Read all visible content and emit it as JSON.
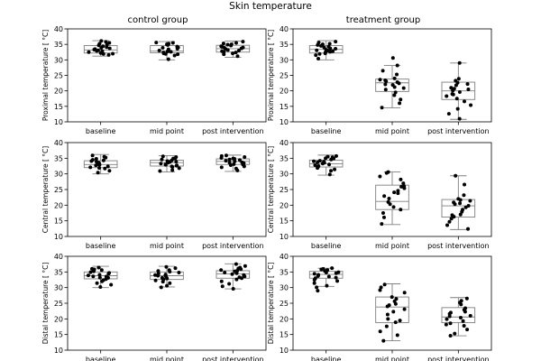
{
  "figure_title": "Skin temperature",
  "column_titles": [
    "control group",
    "treatment group"
  ],
  "chart_data": [
    {
      "type": "box",
      "group": "control group",
      "ylabel": "Proximal temperature [ °C]",
      "ylim": [
        10,
        40
      ],
      "yticks": [
        10,
        15,
        20,
        25,
        30,
        35,
        40
      ],
      "categories": [
        "baseline",
        "mid point",
        "post intervention"
      ],
      "boxes": [
        {
          "whislo": 31.2,
          "q1": 32.2,
          "med": 33.2,
          "q3": 34.6,
          "whishi": 36.2
        },
        {
          "whislo": 30.0,
          "q1": 32.3,
          "med": 32.8,
          "q3": 34.6,
          "whishi": 35.9
        },
        {
          "whislo": 30.8,
          "q1": 32.5,
          "med": 33.6,
          "q3": 34.7,
          "whishi": 36.1
        }
      ],
      "points": [
        [
          34.1,
          32.8,
          35.2,
          33.5,
          31.6,
          34.9,
          32.2,
          36.1,
          33.9,
          32.5,
          34.4,
          31.9,
          33.1,
          35.5,
          32.9,
          34.7,
          33.3,
          32.0,
          35.8,
          33.7
        ],
        [
          35.6,
          32.4,
          33.9,
          31.8,
          34.8,
          32.9,
          30.2,
          35.2,
          33.4,
          32.1,
          34.3,
          31.4,
          33.0,
          35.5,
          32.6,
          34.0,
          31.9,
          33.6,
          35.0,
          32.7
        ],
        [
          34.6,
          33.2,
          35.9,
          32.4,
          34.0,
          31.2,
          35.3,
          33.7,
          32.8,
          34.9,
          33.0,
          35.5,
          31.8,
          34.2,
          33.5,
          32.1,
          35.0,
          33.9,
          34.4,
          32.6
        ]
      ]
    },
    {
      "type": "box",
      "group": "treatment group",
      "ylabel": "Proximal temperature [ °C]",
      "ylim": [
        10,
        40
      ],
      "yticks": [
        10,
        15,
        20,
        25,
        30,
        35,
        40
      ],
      "categories": [
        "baseline",
        "mid point",
        "post intervention"
      ],
      "boxes": [
        {
          "whislo": 30.0,
          "q1": 32.2,
          "med": 33.4,
          "q3": 34.6,
          "whishi": 36.2
        },
        {
          "whislo": 14.5,
          "q1": 19.8,
          "med": 22.6,
          "q3": 23.8,
          "whishi": 28.2
        },
        {
          "whislo": 10.8,
          "q1": 17.2,
          "med": 20.0,
          "q3": 22.8,
          "whishi": 29.0
        }
      ],
      "points": [
        [
          34.5,
          33.1,
          35.6,
          32.4,
          34.0,
          31.5,
          35.2,
          33.7,
          32.8,
          34.8,
          30.4,
          35.9,
          33.3,
          32.1,
          34.3,
          33.0,
          31.9,
          35.0,
          33.6,
          32.6
        ],
        [
          30.6,
          28.2,
          26.5,
          25.3,
          24.0,
          23.6,
          23.1,
          22.8,
          22.4,
          21.9,
          21.2,
          20.4,
          19.5,
          18.6,
          17.2,
          16.0,
          14.6,
          23.4,
          22.1,
          20.9
        ],
        [
          29.0,
          23.9,
          23.3,
          22.6,
          21.8,
          21.0,
          20.5,
          20.1,
          19.6,
          19.0,
          18.3,
          17.5,
          16.6,
          15.4,
          14.2,
          12.6,
          11.0,
          22.2,
          20.7,
          18.8
        ]
      ]
    },
    {
      "type": "box",
      "group": "control group",
      "ylabel": "Central temperature [ °C]",
      "ylim": [
        10,
        40
      ],
      "yticks": [
        10,
        15,
        20,
        25,
        30,
        35,
        40
      ],
      "categories": [
        "baseline",
        "mid point",
        "post intervention"
      ],
      "boxes": [
        {
          "whislo": 30.0,
          "q1": 32.0,
          "med": 33.0,
          "q3": 34.2,
          "whishi": 36.2
        },
        {
          "whislo": 30.6,
          "q1": 32.5,
          "med": 33.6,
          "q3": 34.4,
          "whishi": 35.8
        },
        {
          "whislo": 30.8,
          "q1": 33.0,
          "med": 34.0,
          "q3": 34.8,
          "whishi": 36.0
        }
      ],
      "points": [
        [
          35.9,
          33.4,
          32.1,
          34.5,
          31.0,
          33.9,
          32.7,
          35.2,
          30.4,
          33.1,
          34.1,
          32.4,
          33.6,
          31.7,
          34.8,
          32.9,
          33.3,
          35.5,
          31.9,
          34.3
        ],
        [
          35.4,
          33.8,
          32.6,
          34.6,
          31.2,
          33.3,
          35.0,
          32.2,
          34.1,
          30.9,
          33.6,
          32.9,
          34.9,
          31.8,
          33.0,
          34.3,
          32.4,
          35.6,
          33.9,
          32.7
        ],
        [
          35.7,
          34.2,
          33.1,
          35.1,
          32.4,
          34.6,
          31.1,
          33.7,
          34.9,
          32.8,
          35.4,
          33.4,
          34.0,
          32.1,
          35.9,
          33.0,
          34.4,
          31.7,
          34.8,
          33.6
        ]
      ]
    },
    {
      "type": "box",
      "group": "treatment group",
      "ylabel": "Central temperature [ °C]",
      "ylim": [
        10,
        40
      ],
      "yticks": [
        10,
        15,
        20,
        25,
        30,
        35,
        40
      ],
      "categories": [
        "baseline",
        "mid point",
        "post intervention"
      ],
      "boxes": [
        {
          "whislo": 29.6,
          "q1": 32.2,
          "med": 33.2,
          "q3": 34.4,
          "whishi": 36.0
        },
        {
          "whislo": 13.8,
          "q1": 18.6,
          "med": 21.2,
          "q3": 26.4,
          "whishi": 30.6
        },
        {
          "whislo": 12.2,
          "q1": 16.2,
          "med": 19.8,
          "q3": 21.8,
          "whishi": 29.4
        }
      ],
      "points": [
        [
          35.7,
          33.6,
          32.5,
          34.9,
          31.4,
          34.2,
          33.0,
          35.3,
          29.8,
          33.9,
          32.8,
          34.6,
          33.3,
          31.9,
          35.0,
          32.3,
          34.0,
          33.7,
          31.0,
          35.5
        ],
        [
          30.6,
          30.3,
          28.2,
          27.0,
          26.1,
          25.4,
          24.6,
          23.8,
          22.9,
          22.1,
          21.0,
          20.3,
          19.4,
          18.6,
          17.5,
          16.1,
          14.0,
          29.2,
          25.9,
          24.1
        ],
        [
          29.4,
          26.6,
          23.2,
          22.0,
          21.4,
          20.9,
          20.3,
          19.8,
          19.3,
          18.6,
          17.9,
          17.0,
          16.3,
          15.7,
          14.7,
          13.6,
          12.4,
          21.7,
          20.6,
          16.8
        ]
      ]
    },
    {
      "type": "box",
      "group": "control group",
      "ylabel": "Distal temperature [ °C]",
      "ylim": [
        10,
        40
      ],
      "yticks": [
        10,
        15,
        20,
        25,
        30,
        35,
        40
      ],
      "categories": [
        "baseline",
        "mid point",
        "post intervention"
      ],
      "boxes": [
        {
          "whislo": 30.0,
          "q1": 32.8,
          "med": 33.8,
          "q3": 35.0,
          "whishi": 36.8
        },
        {
          "whislo": 30.2,
          "q1": 32.6,
          "med": 33.8,
          "q3": 35.0,
          "whishi": 36.8
        },
        {
          "whislo": 29.6,
          "q1": 33.0,
          "med": 34.4,
          "q3": 35.4,
          "whishi": 37.6
        }
      ],
      "points": [
        [
          36.4,
          34.9,
          33.5,
          32.0,
          35.6,
          33.1,
          34.4,
          30.2,
          35.2,
          32.7,
          33.9,
          31.4,
          34.7,
          33.2,
          36.0,
          32.4,
          34.1,
          30.9,
          35.8,
          33.6
        ],
        [
          36.6,
          35.1,
          33.4,
          31.9,
          34.8,
          32.6,
          35.6,
          30.1,
          34.0,
          33.1,
          36.2,
          31.4,
          34.5,
          33.8,
          32.3,
          35.3,
          30.6,
          33.9,
          34.2,
          32.9
        ],
        [
          37.5,
          35.9,
          34.6,
          33.3,
          36.4,
          32.0,
          35.2,
          29.6,
          34.0,
          36.9,
          33.6,
          31.2,
          35.6,
          34.3,
          32.6,
          36.1,
          30.4,
          34.8,
          33.0,
          35.4
        ]
      ]
    },
    {
      "type": "box",
      "group": "treatment group",
      "ylabel": "Distal temperature [ °C]",
      "ylim": [
        10,
        40
      ],
      "yticks": [
        10,
        15,
        20,
        25,
        30,
        35,
        40
      ],
      "categories": [
        "baseline",
        "mid point",
        "post intervention"
      ],
      "boxes": [
        {
          "whislo": 30.4,
          "q1": 33.0,
          "med": 34.2,
          "q3": 35.2,
          "whishi": 36.2
        },
        {
          "whislo": 13.0,
          "q1": 18.8,
          "med": 23.8,
          "q3": 27.0,
          "whishi": 31.2
        },
        {
          "whislo": 14.6,
          "q1": 18.8,
          "med": 20.6,
          "q3": 23.6,
          "whishi": 26.8
        }
      ],
      "points": [
        [
          35.8,
          34.6,
          33.2,
          36.0,
          32.5,
          34.9,
          30.6,
          33.7,
          35.3,
          31.4,
          34.1,
          29.0,
          35.6,
          33.0,
          34.4,
          32.1,
          36.2,
          30.1,
          34.8,
          33.5
        ],
        [
          31.0,
          30.1,
          28.4,
          27.0,
          26.4,
          25.6,
          24.8,
          24.0,
          23.1,
          22.3,
          21.4,
          20.0,
          18.9,
          17.6,
          16.0,
          14.8,
          13.0,
          29.2,
          24.4,
          19.5
        ],
        [
          26.5,
          25.8,
          24.6,
          23.4,
          22.9,
          22.3,
          21.6,
          21.0,
          20.4,
          19.9,
          19.3,
          18.6,
          17.8,
          16.6,
          15.3,
          14.6,
          25.2,
          22.0,
          20.8,
          18.2
        ]
      ]
    }
  ]
}
